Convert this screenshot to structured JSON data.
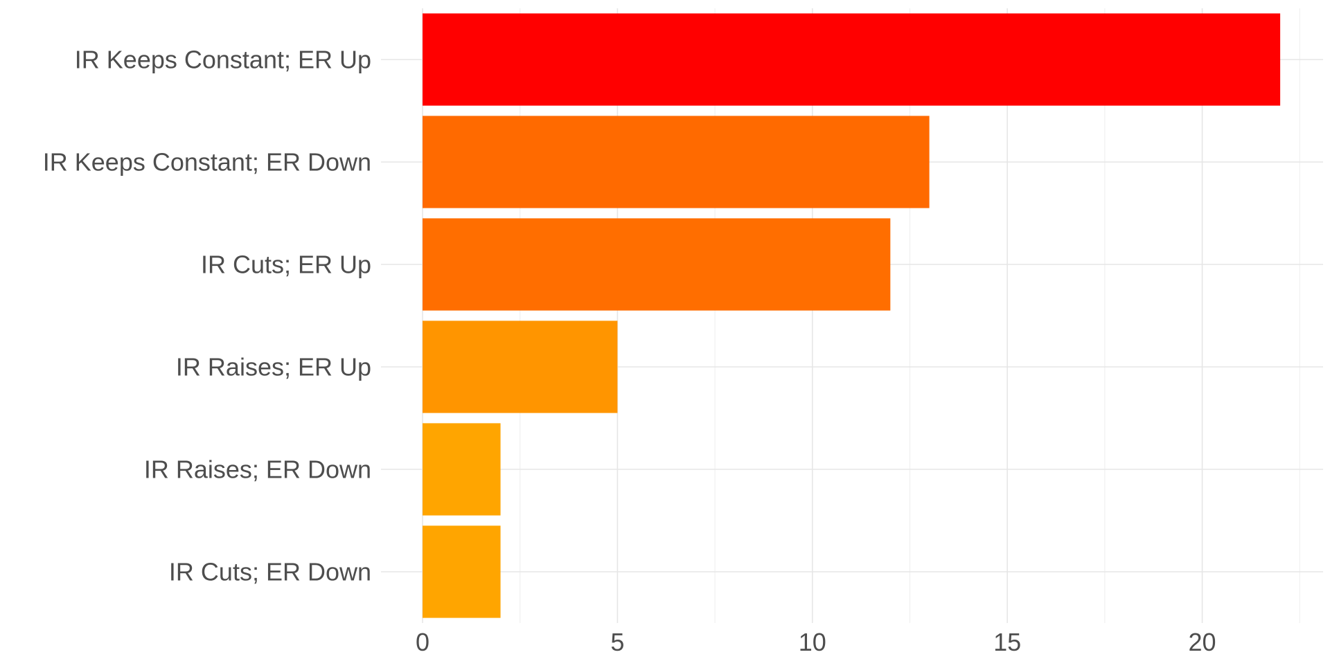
{
  "chart_data": {
    "type": "bar",
    "orientation": "horizontal",
    "categories": [
      "IR Keeps Constant; ER Up",
      "IR Keeps Constant; ER Down",
      "IR Cuts; ER Up",
      "IR Raises; ER Up",
      "IR Raises; ER Down",
      "IR Cuts; ER Down"
    ],
    "values": [
      22,
      13,
      12,
      5,
      2,
      2
    ],
    "colors": [
      "#ff0000",
      "#ff6a00",
      "#ff6e00",
      "#ff9500",
      "#ffa500",
      "#ffa500"
    ],
    "xlim": [
      0,
      23.1
    ],
    "xticks": [
      0,
      5,
      10,
      15,
      20
    ],
    "xtick_labels": [
      "0",
      "5",
      "10",
      "15",
      "20"
    ],
    "title": "",
    "xlabel": "",
    "ylabel": "",
    "grid": true,
    "legend": "none"
  }
}
